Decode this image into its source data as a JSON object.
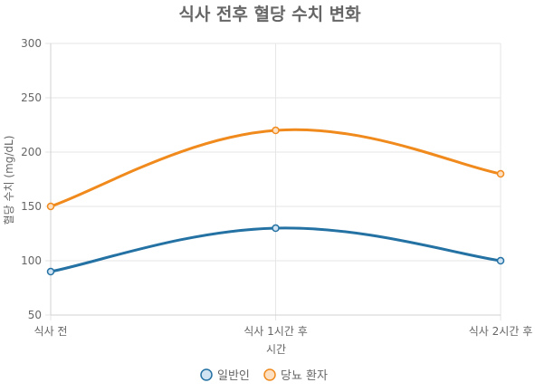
{
  "chart_data": {
    "type": "line",
    "title": "식사 전후 혈당 수치 변화",
    "xlabel": "시간",
    "ylabel": "혈당 수치 (mg/dL)",
    "categories": [
      "식사 전",
      "식사 1시간 후",
      "식사 2시간 후"
    ],
    "ylim": [
      50,
      300
    ],
    "yticks": [
      50,
      100,
      150,
      200,
      250,
      300
    ],
    "grid": true,
    "legend_position": "bottom",
    "smooth": true,
    "series": [
      {
        "name": "일반인",
        "values": [
          90,
          130,
          100
        ],
        "color": "#2471a3",
        "fill": "#cfe3f3"
      },
      {
        "name": "당뇨 환자",
        "values": [
          150,
          220,
          180
        ],
        "color": "#f08a1d",
        "fill": "#fde0c2"
      }
    ]
  }
}
